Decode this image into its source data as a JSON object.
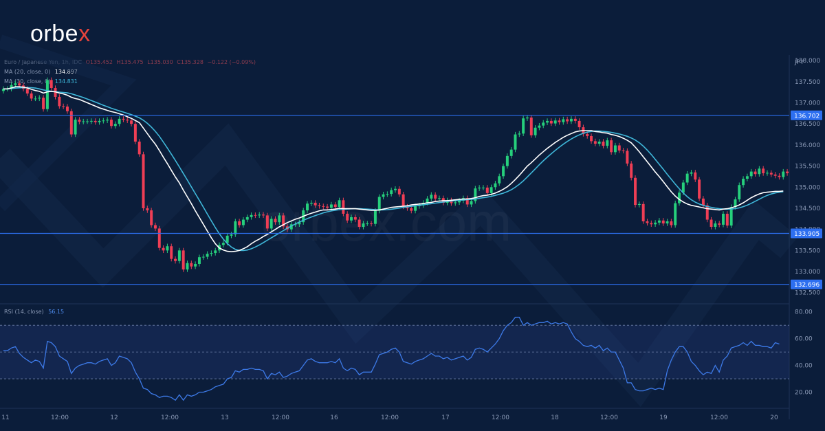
{
  "brand": {
    "logo_main": "orbe",
    "logo_x": "x",
    "watermark": "orbex.com"
  },
  "legend": {
    "symbol": "Euro / Japanese Yen, 1h, IDC",
    "open": "O135.452",
    "high": "H135.475",
    "low": "L135.030",
    "close": "C135.328",
    "change": "−0.122 (−0.09%)",
    "ma20_label": "MA (20, close, 0)",
    "ma20_value": "134.897",
    "ma30_label": "MA (30, close, 0)",
    "ma30_value": "134.831",
    "rsi_label": "RSI (14, close)",
    "rsi_value": "56.15"
  },
  "colors": {
    "background": "#0b1d3a",
    "bull": "#26d07c",
    "bear": "#ef3e55",
    "ma20": "#ffffff",
    "ma30": "#3fb7d9",
    "level_line": "#2d6ff0",
    "rsi_line": "#3d7ae8"
  },
  "chart_data": {
    "type": "candlestick",
    "instrument": "EUR/JPY",
    "timeframe": "1h",
    "currency": "JPY",
    "ylim": [
      132.3,
      138.1
    ],
    "y_ticks": [
      "138.000",
      "137.500",
      "137.000",
      "136.500",
      "136.000",
      "135.500",
      "135.000",
      "134.500",
      "134.000",
      "133.500",
      "133.000",
      "132.500"
    ],
    "x_ticks": [
      "11",
      "12:00",
      "12",
      "12:00",
      "13",
      "12:00",
      "16",
      "12:00",
      "17",
      "12:00",
      "18",
      "12:00",
      "19",
      "12:00",
      "20"
    ],
    "levels": [
      {
        "value": 136.702,
        "label": "136.702"
      },
      {
        "value": 133.905,
        "label": "133.905"
      },
      {
        "value": 132.696,
        "label": "132.696"
      }
    ],
    "close": [
      137.33,
      137.33,
      137.42,
      137.46,
      137.41,
      137.33,
      137.22,
      137.1,
      137.1,
      137.12,
      136.85,
      137.54,
      137.35,
      137.14,
      136.92,
      136.91,
      136.8,
      136.25,
      136.6,
      136.55,
      136.56,
      136.56,
      136.57,
      136.54,
      136.57,
      136.58,
      136.6,
      136.45,
      136.5,
      136.62,
      136.6,
      136.58,
      136.5,
      136.08,
      135.78,
      134.5,
      134.45,
      134.1,
      134.02,
      133.56,
      133.5,
      133.6,
      133.3,
      133.25,
      133.5,
      133.05,
      133.2,
      133.12,
      133.18,
      133.34,
      133.35,
      133.42,
      133.44,
      133.5,
      133.63,
      133.68,
      133.85,
      133.88,
      134.19,
      134.1,
      134.23,
      134.29,
      134.34,
      134.33,
      134.35,
      134.33,
      134.02,
      134.25,
      134.17,
      134.33,
      134.07,
      134.0,
      134.12,
      134.12,
      134.17,
      134.45,
      134.61,
      134.63,
      134.57,
      134.55,
      134.54,
      134.51,
      134.59,
      134.53,
      134.69,
      134.37,
      134.21,
      134.29,
      134.23,
      134.06,
      134.14,
      134.14,
      134.13,
      134.44,
      134.77,
      134.83,
      134.84,
      134.93,
      134.96,
      134.83,
      134.54,
      134.5,
      134.44,
      134.55,
      134.57,
      134.63,
      134.73,
      134.82,
      134.73,
      134.74,
      134.63,
      134.69,
      134.62,
      134.64,
      134.68,
      134.74,
      134.59,
      134.67,
      134.97,
      134.99,
      134.99,
      134.86,
      135.0,
      135.09,
      135.26,
      135.5,
      135.74,
      135.89,
      136.25,
      136.27,
      136.63,
      136.65,
      136.23,
      136.41,
      136.46,
      136.53,
      136.57,
      136.51,
      136.58,
      136.54,
      136.61,
      136.56,
      136.62,
      136.57,
      136.42,
      136.26,
      136.21,
      136.09,
      136.03,
      136.08,
      135.98,
      136.11,
      135.83,
      135.99,
      135.87,
      135.86,
      135.56,
      135.22,
      134.58,
      134.6,
      134.19,
      134.15,
      134.12,
      134.16,
      134.21,
      134.14,
      134.19,
      134.1,
      134.62,
      134.87,
      135.11,
      135.32,
      135.35,
      135.18,
      134.73,
      134.57,
      134.23,
      134.06,
      134.14,
      134.11,
      134.37,
      134.09,
      134.53,
      134.71,
      135.05,
      135.2,
      135.26,
      135.37,
      135.31,
      135.44,
      135.33,
      135.34,
      135.3,
      135.27,
      135.24,
      135.37,
      135.33
    ],
    "ma20": [
      137.33,
      137.33,
      137.35,
      137.38,
      137.38,
      137.37,
      137.35,
      137.32,
      137.29,
      137.27,
      137.23,
      137.26,
      137.27,
      137.26,
      137.23,
      137.21,
      137.18,
      137.13,
      137.1,
      137.08,
      137.04,
      137.0,
      136.96,
      136.92,
      136.88,
      136.85,
      136.82,
      136.79,
      136.77,
      136.74,
      136.71,
      136.67,
      136.63,
      136.58,
      136.53,
      136.4,
      136.27,
      136.14,
      136.02,
      135.87,
      135.71,
      135.56,
      135.4,
      135.24,
      135.1,
      134.93,
      134.77,
      134.61,
      134.44,
      134.28,
      134.12,
      133.96,
      133.8,
      133.66,
      133.56,
      133.51,
      133.48,
      133.47,
      133.48,
      133.5,
      133.54,
      133.59,
      133.66,
      133.72,
      133.77,
      133.83,
      133.88,
      133.94,
      134.0,
      134.06,
      134.11,
      134.16,
      134.2,
      134.24,
      134.27,
      134.31,
      134.35,
      134.38,
      134.41,
      134.44,
      134.46,
      134.46,
      134.47,
      134.48,
      134.5,
      134.49,
      134.49,
      134.49,
      134.49,
      134.48,
      134.47,
      134.46,
      134.45,
      134.45,
      134.46,
      134.48,
      134.5,
      134.52,
      134.53,
      134.54,
      134.55,
      134.56,
      134.58,
      134.59,
      134.6,
      134.61,
      134.63,
      134.64,
      134.66,
      134.67,
      134.68,
      134.68,
      134.69,
      134.7,
      134.71,
      134.72,
      134.72,
      134.73,
      134.75,
      134.78,
      134.8,
      134.81,
      134.83,
      134.86,
      134.9,
      134.95,
      135.01,
      135.09,
      135.18,
      135.28,
      135.39,
      135.5,
      135.58,
      135.67,
      135.76,
      135.84,
      135.92,
      135.99,
      136.06,
      136.12,
      136.18,
      136.23,
      136.27,
      136.31,
      136.33,
      136.34,
      136.34,
      136.34,
      136.32,
      136.31,
      136.29,
      136.28,
      136.25,
      136.23,
      136.2,
      136.16,
      136.11,
      136.05,
      135.95,
      135.84,
      135.72,
      135.6,
      135.48,
      135.36,
      135.25,
      135.13,
      135.01,
      134.89,
      134.79,
      134.71,
      134.65,
      134.6,
      134.57,
      134.55,
      134.53,
      134.51,
      134.49,
      134.48,
      134.47,
      134.46,
      134.48,
      134.49,
      134.51,
      134.54,
      134.58,
      134.63,
      134.69,
      134.75,
      134.8,
      134.84,
      134.87,
      134.88,
      134.89,
      134.9,
      134.9,
      134.91
    ]
  },
  "rsi_data": {
    "ylim": [
      10,
      85
    ],
    "y_ticks": [
      "80.00",
      "60.00",
      "40.00",
      "20.00"
    ],
    "band": [
      30,
      70
    ],
    "midline": 50,
    "values": [
      51,
      51,
      53,
      54,
      49,
      46,
      44,
      42,
      44,
      43,
      38,
      58,
      57,
      54,
      47,
      45,
      43,
      34,
      38,
      40,
      41,
      42,
      42,
      41,
      43,
      44,
      45,
      40,
      42,
      47,
      46,
      45,
      42,
      35,
      30,
      23,
      22,
      19,
      18,
      16,
      17,
      17,
      16,
      14,
      18,
      14,
      18,
      17,
      18,
      20,
      20,
      21,
      22,
      24,
      25,
      26,
      30,
      31,
      36,
      35,
      37,
      37,
      38,
      37,
      37,
      36,
      30,
      34,
      33,
      35,
      31,
      32,
      34,
      35,
      36,
      40,
      44,
      45,
      43,
      42,
      42,
      42,
      43,
      42,
      45,
      38,
      36,
      38,
      37,
      33,
      35,
      35,
      35,
      41,
      48,
      49,
      50,
      52,
      53,
      50,
      43,
      42,
      41,
      43,
      44,
      45,
      47,
      49,
      47,
      47,
      45,
      46,
      44,
      45,
      46,
      47,
      44,
      46,
      52,
      53,
      52,
      50,
      53,
      56,
      60,
      66,
      70,
      72,
      76,
      76,
      70,
      72,
      70,
      71,
      72,
      72,
      73,
      71,
      72,
      71,
      72,
      71,
      65,
      60,
      58,
      55,
      54,
      55,
      53,
      55,
      51,
      53,
      50,
      50,
      44,
      38,
      27,
      27,
      22,
      21,
      21,
      22,
      23,
      22,
      23,
      22,
      36,
      44,
      50,
      54,
      54,
      50,
      43,
      40,
      36,
      33,
      35,
      34,
      40,
      35,
      44,
      47,
      53,
      54,
      55,
      57,
      55,
      58,
      55,
      55,
      54,
      54,
      53,
      57,
      56
    ]
  }
}
